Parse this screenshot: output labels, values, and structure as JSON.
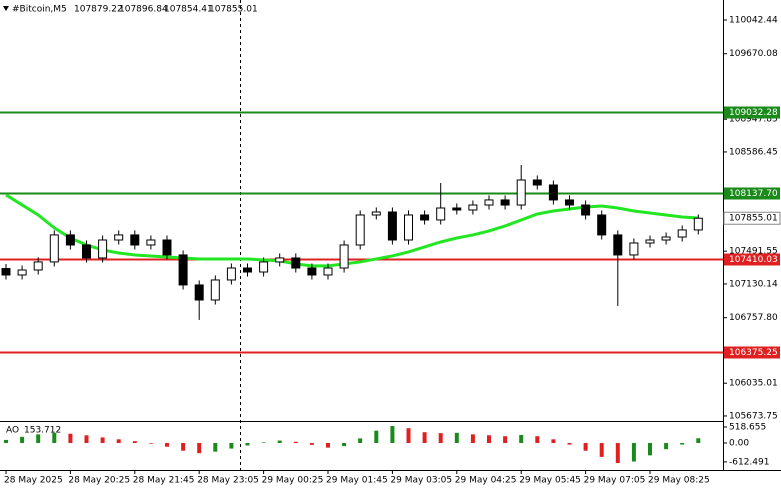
{
  "chart_data": [
    {
      "type": "candlestick",
      "title": "#Bitcoin,M5",
      "last_bar": {
        "open": 107879.22,
        "high": 107896.84,
        "low": 107854.41,
        "close": 107855.01
      },
      "categories": [
        "28 May 2025",
        null,
        null,
        null,
        "28 May 20:25",
        null,
        null,
        null,
        "28 May 21:45",
        null,
        null,
        null,
        "28 May 23:05",
        null,
        null,
        null,
        "29 May 00:25",
        null,
        null,
        null,
        "29 May 01:45",
        null,
        null,
        null,
        "29 May 03:05",
        null,
        null,
        null,
        "29 May 04:25",
        null,
        null,
        null,
        "29 May 05:45",
        null,
        null,
        null,
        "29 May 07:05",
        null,
        null,
        null,
        "29 May 08:25",
        null,
        null,
        null
      ],
      "open": [
        107300,
        107229,
        107284,
        107373,
        107671,
        107560,
        107417,
        107615,
        107671,
        107560,
        107615,
        107450,
        107119,
        106953,
        107174,
        107306,
        107262,
        107373,
        107417,
        107306,
        107229,
        107306,
        107560,
        107891,
        107924,
        107615,
        107891,
        107836,
        107968,
        107946,
        108001,
        108057,
        108001,
        108277,
        108222,
        108057,
        108001,
        107891,
        107671,
        107450,
        107582,
        107615,
        107648,
        107726
      ],
      "high": [
        107350,
        107334,
        107423,
        107721,
        107721,
        107610,
        107665,
        107721,
        107721,
        107665,
        107665,
        107500,
        107169,
        107224,
        107356,
        107356,
        107423,
        107467,
        107467,
        107356,
        107356,
        107610,
        107941,
        107974,
        107974,
        107941,
        107941,
        108244,
        108018,
        108051,
        108107,
        108107,
        108443,
        108327,
        108272,
        108107,
        108051,
        107941,
        107721,
        107632,
        107665,
        107698,
        107776,
        107896.84
      ],
      "low": [
        107179,
        107179,
        107234,
        107323,
        107510,
        107367,
        107367,
        107565,
        107510,
        107510,
        107400,
        107069,
        106733,
        106903,
        107124,
        107212,
        107212,
        107323,
        107256,
        107179,
        107179,
        107256,
        107510,
        107841,
        107565,
        107565,
        107786,
        107786,
        107896,
        107896,
        107951,
        107951,
        107951,
        108172,
        108007,
        107951,
        107841,
        107621,
        106887,
        107400,
        107532,
        107565,
        107598,
        107676
      ],
      "close": [
        107229,
        107284,
        107373,
        107671,
        107560,
        107417,
        107615,
        107671,
        107560,
        107615,
        107450,
        107119,
        106953,
        107174,
        107306,
        107262,
        107373,
        107417,
        107306,
        107229,
        107306,
        107560,
        107891,
        107924,
        107615,
        107891,
        107836,
        107968,
        107946,
        108001,
        108057,
        108001,
        108277,
        108222,
        108057,
        108001,
        107891,
        107671,
        107450,
        107582,
        107615,
        107648,
        107726,
        107855.01
      ],
      "up_color": "#ffffff",
      "down_color": "#000000",
      "ma": {
        "color": "#22e622",
        "values": [
          108112,
          108002,
          107891,
          107748,
          107637,
          107560,
          107505,
          107472,
          107450,
          107439,
          107428,
          107417,
          107406,
          107406,
          107406,
          107406,
          107395,
          107384,
          107351,
          107329,
          107329,
          107351,
          107373,
          107406,
          107439,
          107483,
          107538,
          107593,
          107637,
          107671,
          107715,
          107770,
          107836,
          107902,
          107935,
          107957,
          107979,
          107990,
          107968,
          107935,
          107913,
          107891,
          107869,
          107858
        ]
      },
      "levels": [
        {
          "value": 109032.28,
          "label": "109032.28",
          "color": "#1a8a1a"
        },
        {
          "value": 108137.7,
          "label": "108137.70",
          "color": "#1a8a1a"
        },
        {
          "value": 107410.03,
          "label": "107410.03",
          "color": "#e02020"
        },
        {
          "value": 106375.25,
          "label": "106375.25",
          "color": "#e02020"
        }
      ],
      "ylim": [
        105618,
        110263
      ],
      "yticks": [
        110042.44,
        109670.08,
        108947.85,
        108586.45,
        107491.55,
        107130.14,
        {
          "value": 106757.8,
          "label": "106757.80"
        },
        106035.01,
        105673.75
      ]
    },
    {
      "type": "bar",
      "title": "AO",
      "up_color": "#1a8a1a",
      "down_color": "#e02020",
      "values": [
        100,
        200,
        280,
        330,
        300,
        250,
        180,
        120,
        60,
        -20,
        -120,
        -250,
        -330,
        -280,
        -180,
        -80,
        20,
        80,
        40,
        -60,
        -150,
        -100,
        150,
        400,
        550,
        480,
        350,
        320,
        330,
        280,
        250,
        220,
        260,
        220,
        120,
        -50,
        -250,
        -450,
        -650,
        -600,
        -400,
        -200,
        -50,
        153.712
      ],
      "ylim": [
        -810,
        616
      ],
      "yticks": [
        518.655,
        {
          "value": 0,
          "label": "0.00"
        },
        -612.491
      ]
    }
  ]
}
